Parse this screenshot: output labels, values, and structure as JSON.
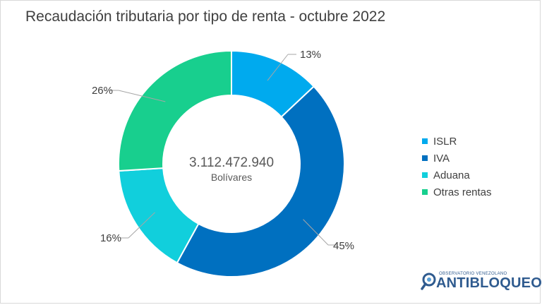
{
  "title": "Recaudación tributaria por tipo de renta - octubre 2022",
  "center": {
    "value": "3.112.472.940",
    "unit": "Bolívares"
  },
  "logo": {
    "small_text": "OBSERVATORIO VENEZOLANO",
    "big_text": "ANTIBLOQUEO"
  },
  "chart_data": {
    "type": "pie",
    "variant": "donut",
    "title": "Recaudación tributaria por tipo de renta - octubre 2022",
    "legend_position": "right",
    "categories": [
      "ISLR",
      "IVA",
      "Aduana",
      "Otras rentas"
    ],
    "values": [
      13,
      45,
      16,
      26
    ],
    "labels": [
      "13%",
      "45%",
      "16%",
      "26%"
    ],
    "colors": [
      "#00aaee",
      "#0070c0",
      "#11cfdc",
      "#18cf8e"
    ],
    "total_label": "3.112.472.940",
    "total_unit": "Bolívares"
  }
}
